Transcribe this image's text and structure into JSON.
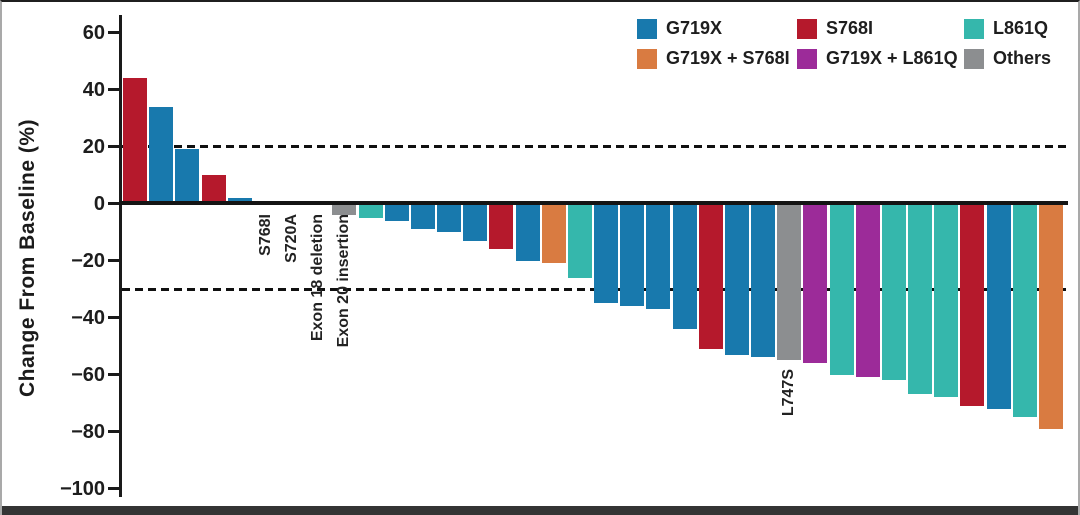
{
  "figure": {
    "ylabel": "Change From Baseline (%)"
  },
  "chart_data": {
    "type": "bar",
    "subtype": "waterfall",
    "title": "",
    "xlabel": "",
    "ylabel": "Change From Baseline (%)",
    "ylim": [
      -100,
      60
    ],
    "yticks": [
      60,
      40,
      20,
      0,
      -20,
      -40,
      -60,
      -80,
      -100
    ],
    "reference_lines_y": [
      20,
      -30
    ],
    "grid": false,
    "legend_position": "top-right",
    "legend": [
      {
        "label": "G719X",
        "color": "#1879ad"
      },
      {
        "label": "S768I",
        "color": "#b5192c"
      },
      {
        "label": "L861Q",
        "color": "#35b7ac"
      },
      {
        "label": "G719X + S768I",
        "color": "#d97b41"
      },
      {
        "label": "G719X + L861Q",
        "color": "#9c2b99"
      },
      {
        "label": "Others",
        "color": "#8c8e90"
      }
    ],
    "bars": [
      {
        "value": 44,
        "group": "S768I"
      },
      {
        "value": 34,
        "group": "G719X"
      },
      {
        "value": 19,
        "group": "G719X"
      },
      {
        "value": 10,
        "group": "S768I"
      },
      {
        "value": 2,
        "group": "G719X"
      },
      {
        "value": 0,
        "group": "S768I",
        "annotation": "S768I"
      },
      {
        "value": 0,
        "group": "Others",
        "annotation": "S720A"
      },
      {
        "value": 0,
        "group": "Others",
        "annotation": "Exon 18 deletion"
      },
      {
        "value": -4,
        "group": "Others",
        "annotation": "Exon 20 insertion"
      },
      {
        "value": -5,
        "group": "L861Q"
      },
      {
        "value": -6,
        "group": "G719X"
      },
      {
        "value": -9,
        "group": "G719X"
      },
      {
        "value": -10,
        "group": "G719X"
      },
      {
        "value": -13,
        "group": "G719X"
      },
      {
        "value": -16,
        "group": "S768I"
      },
      {
        "value": -20,
        "group": "G719X"
      },
      {
        "value": -21,
        "group": "G719X + S768I"
      },
      {
        "value": -26,
        "group": "L861Q"
      },
      {
        "value": -35,
        "group": "G719X"
      },
      {
        "value": -36,
        "group": "G719X"
      },
      {
        "value": -37,
        "group": "G719X"
      },
      {
        "value": -44,
        "group": "G719X"
      },
      {
        "value": -51,
        "group": "S768I"
      },
      {
        "value": -53,
        "group": "G719X"
      },
      {
        "value": -54,
        "group": "G719X"
      },
      {
        "value": -55,
        "group": "Others",
        "annotation": "L747S"
      },
      {
        "value": -56,
        "group": "G719X + L861Q"
      },
      {
        "value": -60,
        "group": "L861Q"
      },
      {
        "value": -61,
        "group": "G719X + L861Q"
      },
      {
        "value": -62,
        "group": "L861Q"
      },
      {
        "value": -67,
        "group": "L861Q"
      },
      {
        "value": -68,
        "group": "L861Q"
      },
      {
        "value": -71,
        "group": "S768I"
      },
      {
        "value": -72,
        "group": "G719X"
      },
      {
        "value": -75,
        "group": "L861Q"
      },
      {
        "value": -79,
        "group": "G719X + S768I"
      }
    ]
  }
}
